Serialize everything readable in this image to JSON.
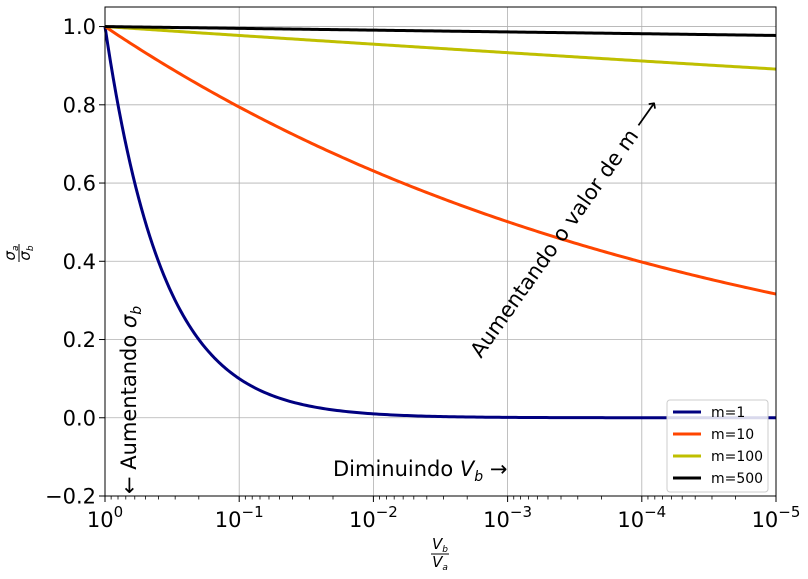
{
  "chart_data": {
    "type": "line",
    "xlabel": "V_b / V_a",
    "ylabel": "σ_a / σ_b",
    "x_scale": "log",
    "x_reversed": true,
    "xlim": [
      1,
      1e-05
    ],
    "ylim": [
      -0.2,
      1.05
    ],
    "grid": true,
    "legend_position": "lower-right",
    "x_ticks": [
      {
        "value": 1,
        "base": "10",
        "exp": "0"
      },
      {
        "value": 0.1,
        "base": "10",
        "exp": "−1"
      },
      {
        "value": 0.01,
        "base": "10",
        "exp": "−2"
      },
      {
        "value": 0.001,
        "base": "10",
        "exp": "−3"
      },
      {
        "value": 0.0001,
        "base": "10",
        "exp": "−4"
      },
      {
        "value": 1e-05,
        "base": "10",
        "exp": "−5"
      }
    ],
    "y_ticks": [
      {
        "value": -0.2,
        "label": "−0.2"
      },
      {
        "value": 0.0,
        "label": "0.0"
      },
      {
        "value": 0.2,
        "label": "0.2"
      },
      {
        "value": 0.4,
        "label": "0.4"
      },
      {
        "value": 0.6,
        "label": "0.6"
      },
      {
        "value": 0.8,
        "label": "0.8"
      },
      {
        "value": 1.0,
        "label": "1.0"
      }
    ],
    "series": [
      {
        "name": "m=1",
        "m": 1,
        "color": "#000080",
        "x": [
          1,
          0.5,
          0.3,
          0.2,
          0.1,
          0.05,
          0.02,
          0.01,
          0.005,
          0.002,
          0.001,
          0.0001,
          1e-05
        ],
        "y": [
          1.0,
          0.5,
          0.3,
          0.2,
          0.1,
          0.05,
          0.02,
          0.01,
          0.005,
          0.002,
          0.001,
          0.0001,
          1e-05
        ]
      },
      {
        "name": "m=10",
        "m": 10,
        "color": "#FF4500",
        "x": [
          1,
          0.3,
          0.1,
          0.03,
          0.01,
          0.003,
          0.001,
          0.0003,
          0.0001,
          3e-05,
          1e-05
        ],
        "y": [
          1.0,
          0.887,
          0.794,
          0.704,
          0.631,
          0.56,
          0.501,
          0.444,
          0.398,
          0.352,
          0.316
        ]
      },
      {
        "name": "m=100",
        "m": 100,
        "color": "#BFBF00",
        "x": [
          1,
          0.1,
          0.01,
          0.001,
          0.0001,
          1e-05
        ],
        "y": [
          1.0,
          0.977,
          0.955,
          0.933,
          0.912,
          0.891
        ]
      },
      {
        "name": "m=500",
        "m": 500,
        "color": "#000000",
        "x": [
          1,
          0.1,
          0.01,
          0.001,
          0.0001,
          1e-05
        ],
        "y": [
          1.0,
          0.995,
          0.991,
          0.986,
          0.982,
          0.977
        ]
      }
    ],
    "annotations": {
      "increase_m": "Aumentando o valor de m ⟶",
      "decrease_vb": "Diminuindo V_b →",
      "increase_sigma": "← Aumentando σ_b"
    }
  }
}
